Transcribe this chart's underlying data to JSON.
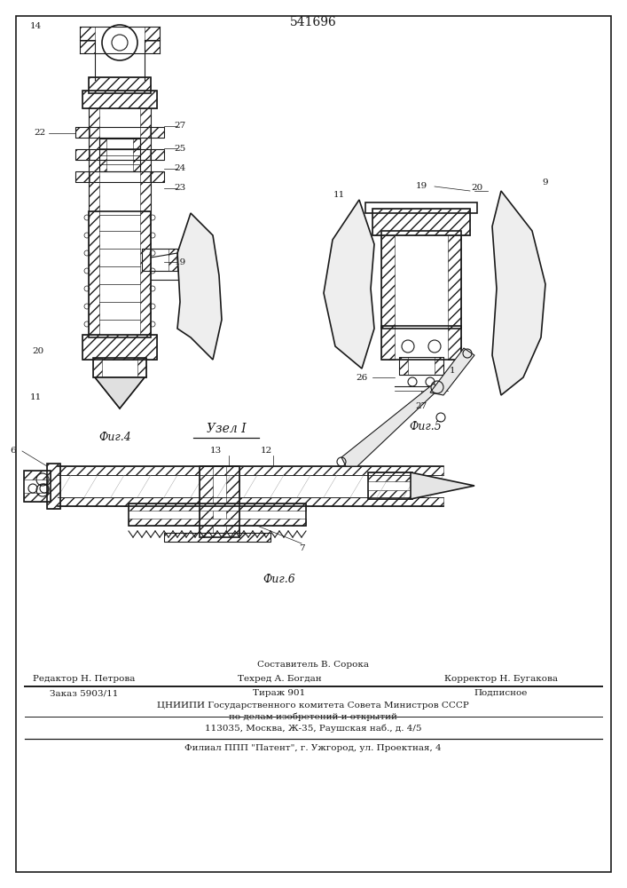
{
  "title": "541696",
  "bg_color": "#ffffff",
  "fig_width": 7.07,
  "fig_height": 10.0,
  "footer_line1_left": "Редактор Н. Петрова",
  "footer_line1_center": "Техред А. Богдан",
  "footer_line1_center_top": "Составитель В. Сорока",
  "footer_line1_right": "Корректор Н. Бугакова",
  "footer_line2_left": "Заказ 5903/11",
  "footer_line2_center": "Тираж 901",
  "footer_line2_right": "Подписное",
  "footer_line3": "ЦНИИПИ Государственного комитета Совета Министров СССР",
  "footer_line4": "по делам изобретений и открытий",
  "footer_line5": "113035, Москва, Ж-35, Раушская наб., д. 4/5",
  "footer_line6": "Филиал ППП \"Патент\", г. Ужгород, ул. Проектная, 4",
  "fig4_label": "Фиг.4",
  "fig5_label": "Фиг.5",
  "fig6_label": "Фиг.6",
  "uzel_label": "Узел I"
}
